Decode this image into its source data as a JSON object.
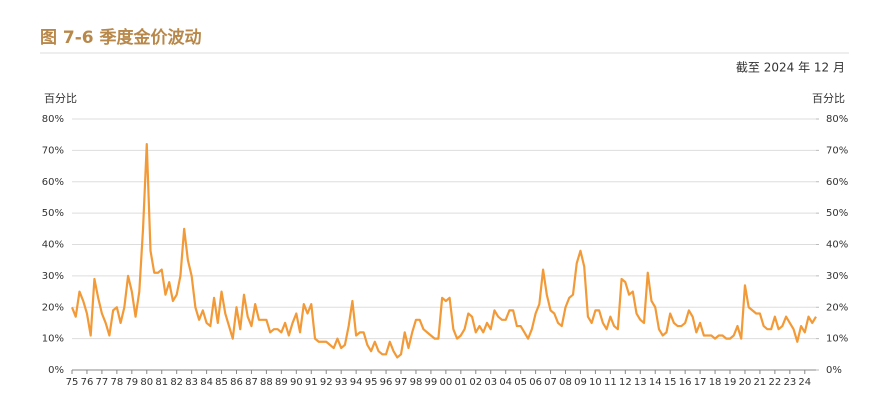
{
  "chart_data": {
    "type": "line",
    "title": "图 7-6 季度金价波动",
    "subtitle": "截至 2024 年 12 月",
    "y_label": "百分比",
    "y2_label": "百分比",
    "color": "#f39a38",
    "grid": true,
    "ylim": [
      0,
      80
    ],
    "y2lim": [
      0,
      80
    ],
    "yticks": [
      {
        "value": 0,
        "label": "0%"
      },
      {
        "value": 10,
        "label": "10%"
      },
      {
        "value": 20,
        "label": "20%"
      },
      {
        "value": 30,
        "label": "30%"
      },
      {
        "value": 40,
        "label": "40%"
      },
      {
        "value": 50,
        "label": "50%"
      },
      {
        "value": 60,
        "label": "60%"
      },
      {
        "value": 70,
        "label": "70%"
      },
      {
        "value": 80,
        "label": "80%"
      }
    ],
    "y2ticks": [
      {
        "value": 0,
        "label": "0%"
      },
      {
        "value": 10,
        "label": "10%"
      },
      {
        "value": 20,
        "label": "20%"
      },
      {
        "value": 30,
        "label": "30%"
      },
      {
        "value": 40,
        "label": "40%"
      },
      {
        "value": 50,
        "label": "50%"
      },
      {
        "value": 60,
        "label": "60%"
      },
      {
        "value": 70,
        "label": "70%"
      },
      {
        "value": 80,
        "label": "80%"
      }
    ],
    "categories": [
      "75",
      null,
      null,
      null,
      "76",
      null,
      null,
      null,
      "77",
      null,
      null,
      null,
      "78",
      null,
      null,
      null,
      "79",
      null,
      null,
      null,
      "80",
      null,
      null,
      null,
      "81",
      null,
      null,
      null,
      "82",
      null,
      null,
      null,
      "83",
      null,
      null,
      null,
      "84",
      null,
      null,
      null,
      "85",
      null,
      null,
      null,
      "86",
      null,
      null,
      null,
      "87",
      null,
      null,
      null,
      "88",
      null,
      null,
      null,
      "89",
      null,
      null,
      null,
      "90",
      null,
      null,
      null,
      "91",
      null,
      null,
      null,
      "92",
      null,
      null,
      null,
      "93",
      null,
      null,
      null,
      "94",
      null,
      null,
      null,
      "95",
      null,
      null,
      null,
      "96",
      null,
      null,
      null,
      "97",
      null,
      null,
      null,
      "98",
      null,
      null,
      null,
      "99",
      null,
      null,
      null,
      "00",
      null,
      null,
      null,
      "01",
      null,
      null,
      null,
      "02",
      null,
      null,
      null,
      "03",
      null,
      null,
      null,
      "04",
      null,
      null,
      null,
      "05",
      null,
      null,
      null,
      "06",
      null,
      null,
      null,
      "07",
      null,
      null,
      null,
      "08",
      null,
      null,
      null,
      "09",
      null,
      null,
      null,
      "10",
      null,
      null,
      null,
      "11",
      null,
      null,
      null,
      "12",
      null,
      null,
      null,
      "13",
      null,
      null,
      null,
      "14",
      null,
      null,
      null,
      "15",
      null,
      null,
      null,
      "16",
      null,
      null,
      null,
      "17",
      null,
      null,
      null,
      "18",
      null,
      null,
      null,
      "19",
      null,
      null,
      null,
      "20",
      null,
      null,
      null,
      "21",
      null,
      null,
      null,
      "22",
      null,
      null,
      null,
      "23",
      null,
      null,
      null,
      "24",
      null,
      null,
      null
    ],
    "values": [
      20,
      17,
      25,
      22,
      18,
      11,
      29,
      23,
      18,
      15,
      11,
      19,
      20,
      15,
      20,
      30,
      25,
      17,
      25,
      45,
      72,
      38,
      31,
      31,
      32,
      24,
      28,
      22,
      24,
      30,
      45,
      35,
      30,
      20,
      16,
      19,
      15,
      14,
      23,
      15,
      25,
      18,
      14,
      10,
      20,
      13,
      24,
      17,
      14,
      21,
      16,
      16,
      16,
      12,
      13,
      13,
      12,
      15,
      11,
      15,
      18,
      12,
      21,
      18,
      21,
      10,
      9,
      9,
      9,
      8,
      7,
      10,
      7,
      8,
      14,
      22,
      11,
      12,
      12,
      8,
      6,
      9,
      6,
      5,
      5,
      9,
      6,
      4,
      5,
      12,
      7,
      12,
      16,
      16,
      13,
      12,
      11,
      10,
      10,
      23,
      22,
      23,
      13,
      10,
      11,
      13,
      18,
      17,
      12,
      14,
      12,
      15,
      13,
      19,
      17,
      16,
      16,
      19,
      19,
      14,
      14,
      12,
      10,
      13,
      18,
      21,
      32,
      24,
      19,
      18,
      15,
      14,
      20,
      23,
      24,
      34,
      38,
      33,
      17,
      15,
      19,
      19,
      15,
      13,
      17,
      14,
      13,
      29,
      28,
      24,
      25,
      18,
      16,
      15,
      31,
      22,
      20,
      13,
      11,
      12,
      18,
      15,
      14,
      14,
      15,
      19,
      17,
      12,
      15,
      11,
      11,
      11,
      10,
      11,
      11,
      10,
      10,
      11,
      14,
      10,
      27,
      20,
      19,
      18,
      18,
      14,
      13,
      13,
      17,
      13,
      14,
      17,
      15,
      13,
      9,
      14,
      12,
      17,
      15,
      17
    ]
  }
}
